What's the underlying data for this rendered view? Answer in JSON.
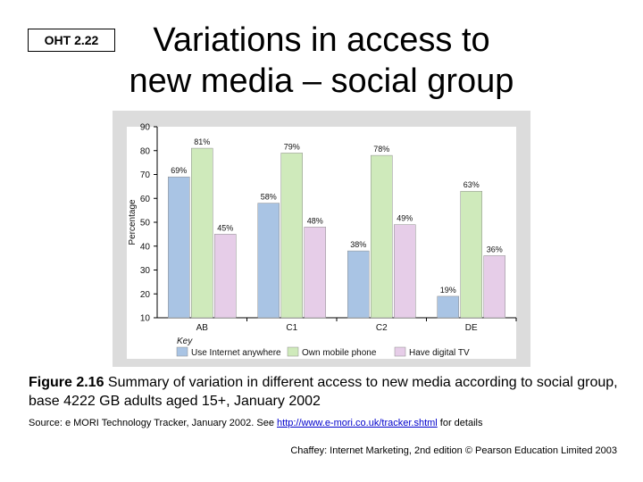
{
  "oht_label": "OHT 2.22",
  "title_line1": "Variations in access to",
  "title_line2": "new media – social group",
  "chart_data": {
    "type": "bar",
    "categories": [
      "AB",
      "C1",
      "C2",
      "DE"
    ],
    "series": [
      {
        "name": "Use Internet anywhere",
        "values": [
          69,
          58,
          38,
          19
        ],
        "labels": [
          "69%",
          "58%",
          "38%",
          "19%"
        ],
        "color": "#a9c4e4"
      },
      {
        "name": "Own mobile phone",
        "values": [
          81,
          79,
          78,
          63
        ],
        "labels": [
          "81%",
          "79%",
          "78%",
          "63%"
        ],
        "color": "#cfeabb"
      },
      {
        "name": "Have digital TV",
        "values": [
          45,
          48,
          49,
          36
        ],
        "labels": [
          "45%",
          "48%",
          "49%",
          "36%"
        ],
        "color": "#e6cde8"
      }
    ],
    "ylabel": "Percentage",
    "ylim": [
      10,
      90
    ],
    "yticks": [
      10,
      20,
      30,
      40,
      50,
      60,
      70,
      80,
      90
    ],
    "legend_title": "Key",
    "legend_placement": "bottom",
    "grid": false
  },
  "caption": {
    "figure_label": "Figure 2.16",
    "text": " Summary of variation in different access to new media according to social group, base 4222 GB adults aged 15+, January 2002"
  },
  "source": {
    "before": "Source: e MORI Technology Tracker, January 2002. See ",
    "link": "http://www.e-mori.co.uk/tracker.shtml",
    "after": " for details"
  },
  "credit": "Chaffey: Internet Marketing, 2nd edition © Pearson Education Limited 2003"
}
